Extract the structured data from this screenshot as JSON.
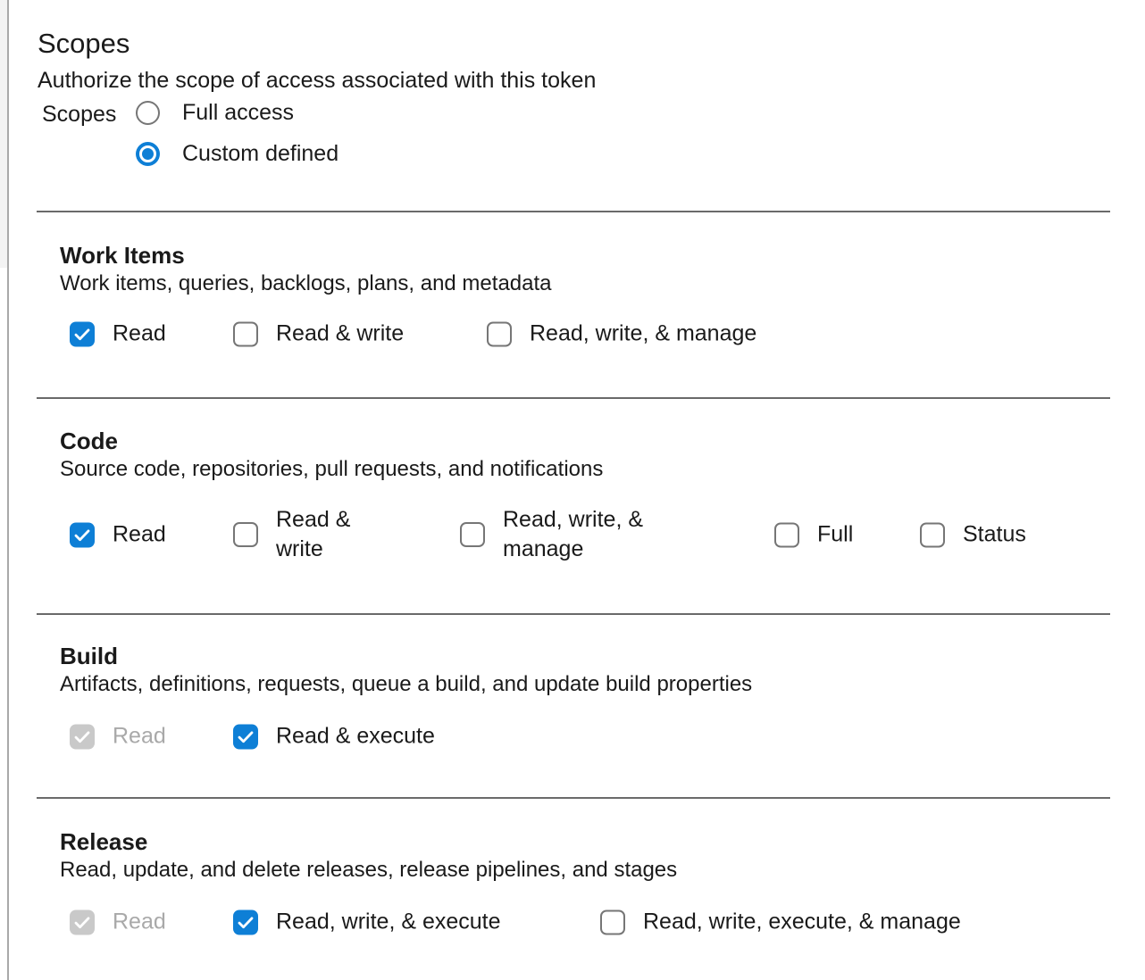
{
  "page": {
    "title": "Scopes",
    "subtitle": "Authorize the scope of access associated with this token"
  },
  "scope_mode": {
    "label": "Scopes",
    "options": [
      {
        "label": "Full access",
        "selected": false
      },
      {
        "label": "Custom defined",
        "selected": true
      }
    ]
  },
  "sections": [
    {
      "name": "Work Items",
      "description": "Work items, queries, backlogs, plans, and metadata",
      "options": [
        {
          "label": "Read",
          "checked": true,
          "disabled": false
        },
        {
          "label": "Read & write",
          "checked": false,
          "disabled": false
        },
        {
          "label": "Read, write, & manage",
          "checked": false,
          "disabled": false
        }
      ]
    },
    {
      "name": "Code",
      "description": "Source code, repositories, pull requests, and notifications",
      "options": [
        {
          "label": "Read",
          "checked": true,
          "disabled": false
        },
        {
          "label": "Read & write",
          "checked": false,
          "disabled": false
        },
        {
          "label": "Read, write, & manage",
          "checked": false,
          "disabled": false
        },
        {
          "label": "Full",
          "checked": false,
          "disabled": false
        },
        {
          "label": "Status",
          "checked": false,
          "disabled": false
        }
      ]
    },
    {
      "name": "Build",
      "description": "Artifacts, definitions, requests, queue a build, and update build properties",
      "options": [
        {
          "label": "Read",
          "checked": true,
          "disabled": true
        },
        {
          "label": "Read & execute",
          "checked": true,
          "disabled": false
        }
      ]
    },
    {
      "name": "Release",
      "description": "Read, update, and delete releases, release pipelines, and stages",
      "options": [
        {
          "label": "Read",
          "checked": true,
          "disabled": true
        },
        {
          "label": "Read, write, & execute",
          "checked": true,
          "disabled": false
        },
        {
          "label": "Read, write, execute, & manage",
          "checked": false,
          "disabled": false
        }
      ]
    }
  ],
  "colors": {
    "accent": "#0e7fd6",
    "divider": "#6a6a6a",
    "text": "#1a1a1a",
    "checkbox_border": "#767676",
    "disabled_fill": "#c9c9c9",
    "disabled_text": "#a9a9a9"
  }
}
